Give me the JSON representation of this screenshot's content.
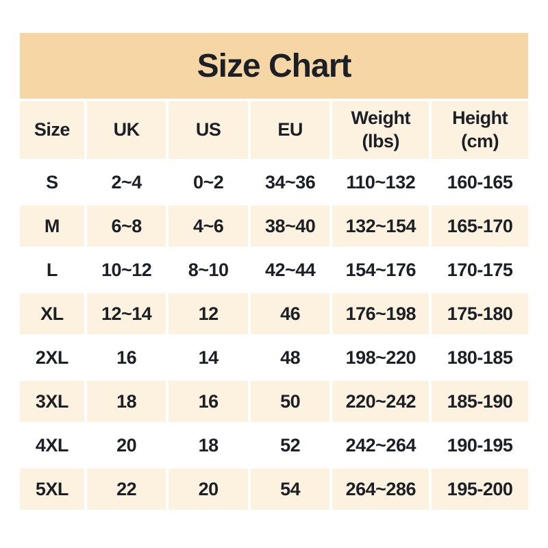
{
  "title": "Size Chart",
  "colors": {
    "title_band": "#f5d6a4",
    "row_stripe": "#fcf2df",
    "row_alt": "#ffffff",
    "text": "#1c2026",
    "page_background": "#ffffff"
  },
  "chart_data": {
    "type": "table",
    "title": "Size Chart",
    "columns": [
      "Size",
      "UK",
      "US",
      "EU",
      "Weight\n(lbs)",
      "Height\n(cm)"
    ],
    "rows": [
      [
        "S",
        "2~4",
        "0~2",
        "34~36",
        "110~132",
        "160-165"
      ],
      [
        "M",
        "6~8",
        "4~6",
        "38~40",
        "132~154",
        "165-170"
      ],
      [
        "L",
        "10~12",
        "8~10",
        "42~44",
        "154~176",
        "170-175"
      ],
      [
        "XL",
        "12~14",
        "12",
        "46",
        "176~198",
        "175-180"
      ],
      [
        "2XL",
        "16",
        "14",
        "48",
        "198~220",
        "180-185"
      ],
      [
        "3XL",
        "18",
        "16",
        "50",
        "220~242",
        "185-190"
      ],
      [
        "4XL",
        "20",
        "18",
        "52",
        "242~264",
        "190-195"
      ],
      [
        "5XL",
        "22",
        "20",
        "54",
        "264~286",
        "195-200"
      ]
    ],
    "layout": {
      "striping": "header and odd data rows cream, even data rows white",
      "alignment": "center",
      "grid": "white gaps between cells"
    }
  }
}
